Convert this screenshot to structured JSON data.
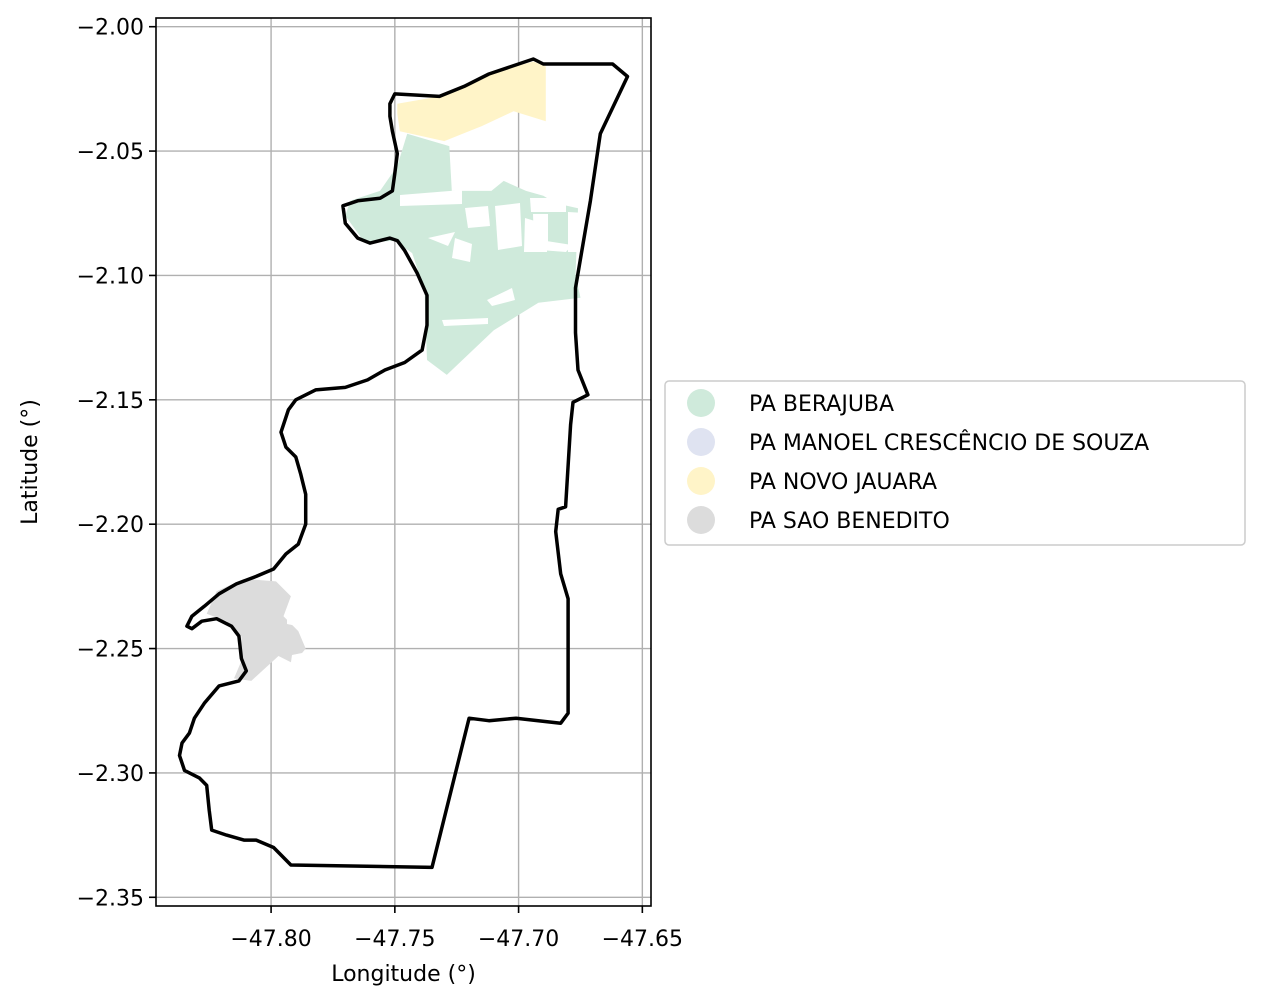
{
  "chart_data": {
    "type": "map",
    "xlabel": "Longitude (°)",
    "ylabel": "Latitude (°)",
    "xlim": [
      -47.8465,
      -47.6465
    ],
    "ylim": [
      -2.3535,
      -1.9965
    ],
    "grid": true,
    "x_ticks": [
      {
        "value": -47.8,
        "label": "−47.80"
      },
      {
        "value": -47.75,
        "label": "−47.75"
      },
      {
        "value": -47.7,
        "label": "−47.70"
      },
      {
        "value": -47.65,
        "label": "−47.65"
      }
    ],
    "y_ticks": [
      {
        "value": -2.0,
        "label": "−2.00"
      },
      {
        "value": -2.05,
        "label": "−2.05"
      },
      {
        "value": -2.1,
        "label": "−2.10"
      },
      {
        "value": -2.15,
        "label": "−2.15"
      },
      {
        "value": -2.2,
        "label": "−2.20"
      },
      {
        "value": -2.25,
        "label": "−2.25"
      },
      {
        "value": -2.3,
        "label": "−2.30"
      },
      {
        "value": -2.35,
        "label": "−2.35"
      }
    ],
    "legend_position": "right-center",
    "legend": [
      {
        "label": "PA BERAJUBA",
        "color": "#cfeadb"
      },
      {
        "label": "PA MANOEL CRESCÊNCIO DE SOUZA",
        "color": "#dfe3f1"
      },
      {
        "label": "PA NOVO JAUARA",
        "color": "#fff4c8"
      },
      {
        "label": "PA SAO BENEDITO",
        "color": "#dcdcdc"
      }
    ],
    "boundary": {
      "color": "#000000",
      "coords": [
        [
          -47.75,
          -2.027
        ],
        [
          -47.732,
          -2.028
        ],
        [
          -47.722,
          -2.024
        ],
        [
          -47.712,
          -2.019
        ],
        [
          -47.694,
          -2.013
        ],
        [
          -47.69,
          -2.015
        ],
        [
          -47.662,
          -2.015
        ],
        [
          -47.656,
          -2.02
        ],
        [
          -47.667,
          -2.043
        ],
        [
          -47.671,
          -2.07
        ],
        [
          -47.677,
          -2.105
        ],
        [
          -47.677,
          -2.123
        ],
        [
          -47.676,
          -2.138
        ],
        [
          -47.672,
          -2.148
        ],
        [
          -47.678,
          -2.151
        ],
        [
          -47.679,
          -2.16
        ],
        [
          -47.681,
          -2.193
        ],
        [
          -47.684,
          -2.194
        ],
        [
          -47.685,
          -2.203
        ],
        [
          -47.683,
          -2.22
        ],
        [
          -47.68,
          -2.23
        ],
        [
          -47.68,
          -2.276
        ],
        [
          -47.683,
          -2.28
        ],
        [
          -47.701,
          -2.278
        ],
        [
          -47.712,
          -2.279
        ],
        [
          -47.72,
          -2.278
        ],
        [
          -47.735,
          -2.338
        ],
        [
          -47.792,
          -2.337
        ],
        [
          -47.795,
          -2.334
        ],
        [
          -47.799,
          -2.33
        ],
        [
          -47.806,
          -2.327
        ],
        [
          -47.811,
          -2.327
        ],
        [
          -47.818,
          -2.325
        ],
        [
          -47.824,
          -2.323
        ],
        [
          -47.825,
          -2.315
        ],
        [
          -47.826,
          -2.305
        ],
        [
          -47.829,
          -2.302
        ],
        [
          -47.835,
          -2.299
        ],
        [
          -47.837,
          -2.293
        ],
        [
          -47.836,
          -2.288
        ],
        [
          -47.833,
          -2.284
        ],
        [
          -47.831,
          -2.278
        ],
        [
          -47.827,
          -2.272
        ],
        [
          -47.821,
          -2.265
        ],
        [
          -47.813,
          -2.263
        ],
        [
          -47.81,
          -2.259
        ],
        [
          -47.812,
          -2.254
        ],
        [
          -47.813,
          -2.245
        ],
        [
          -47.816,
          -2.241
        ],
        [
          -47.822,
          -2.238
        ],
        [
          -47.828,
          -2.239
        ],
        [
          -47.832,
          -2.242
        ],
        [
          -47.834,
          -2.241
        ],
        [
          -47.832,
          -2.237
        ],
        [
          -47.827,
          -2.233
        ],
        [
          -47.821,
          -2.228
        ],
        [
          -47.814,
          -2.224
        ],
        [
          -47.806,
          -2.221
        ],
        [
          -47.799,
          -2.218
        ],
        [
          -47.794,
          -2.212
        ],
        [
          -47.789,
          -2.208
        ],
        [
          -47.786,
          -2.2
        ],
        [
          -47.786,
          -2.188
        ],
        [
          -47.788,
          -2.18
        ],
        [
          -47.79,
          -2.173
        ],
        [
          -47.794,
          -2.169
        ],
        [
          -47.796,
          -2.163
        ],
        [
          -47.793,
          -2.154
        ],
        [
          -47.79,
          -2.15
        ],
        [
          -47.782,
          -2.146
        ],
        [
          -47.77,
          -2.145
        ],
        [
          -47.761,
          -2.142
        ],
        [
          -47.754,
          -2.138
        ],
        [
          -47.746,
          -2.135
        ],
        [
          -47.739,
          -2.13
        ],
        [
          -47.737,
          -2.12
        ],
        [
          -47.737,
          -2.108
        ],
        [
          -47.741,
          -2.099
        ],
        [
          -47.746,
          -2.09
        ],
        [
          -47.749,
          -2.086
        ],
        [
          -47.752,
          -2.085
        ],
        [
          -47.76,
          -2.087
        ],
        [
          -47.765,
          -2.085
        ],
        [
          -47.77,
          -2.079
        ],
        [
          -47.771,
          -2.072
        ],
        [
          -47.765,
          -2.07
        ],
        [
          -47.756,
          -2.069
        ],
        [
          -47.751,
          -2.066
        ],
        [
          -47.75,
          -2.059
        ],
        [
          -47.749,
          -2.051
        ],
        [
          -47.751,
          -2.042
        ],
        [
          -47.752,
          -2.036
        ],
        [
          -47.752,
          -2.031
        ],
        [
          -47.75,
          -2.027
        ]
      ]
    },
    "regions": [
      {
        "name": "PA NOVO JAUARA",
        "color": "#fff4c8",
        "coords": [
          [
            -47.749,
            -2.035
          ],
          [
            -47.748,
            -2.042
          ],
          [
            -47.73,
            -2.046
          ],
          [
            -47.715,
            -2.04
          ],
          [
            -47.702,
            -2.034
          ],
          [
            -47.689,
            -2.038
          ],
          [
            -47.689,
            -2.016
          ],
          [
            -47.694,
            -2.014
          ],
          [
            -47.712,
            -2.019
          ],
          [
            -47.722,
            -2.024
          ],
          [
            -47.732,
            -2.028
          ],
          [
            -47.749,
            -2.031
          ]
        ]
      },
      {
        "name": "PA BERAJUBA",
        "color": "#cfeadb",
        "coords": [
          [
            -47.745,
            -2.043
          ],
          [
            -47.728,
            -2.048
          ],
          [
            -47.727,
            -2.066
          ],
          [
            -47.711,
            -2.066
          ],
          [
            -47.706,
            -2.062
          ],
          [
            -47.697,
            -2.066
          ],
          [
            -47.69,
            -2.068
          ],
          [
            -47.685,
            -2.071
          ],
          [
            -47.676,
            -2.073
          ],
          [
            -47.677,
            -2.1
          ],
          [
            -47.675,
            -2.109
          ],
          [
            -47.692,
            -2.111
          ],
          [
            -47.71,
            -2.122
          ],
          [
            -47.729,
            -2.14
          ],
          [
            -47.737,
            -2.134
          ],
          [
            -47.738,
            -2.106
          ],
          [
            -47.743,
            -2.091
          ],
          [
            -47.75,
            -2.086
          ],
          [
            -47.762,
            -2.087
          ],
          [
            -47.77,
            -2.076
          ],
          [
            -47.768,
            -2.07
          ],
          [
            -47.756,
            -2.066
          ],
          [
            -47.749,
            -2.056
          ]
        ]
      },
      {
        "name": "PA SAO BENEDITO",
        "color": "#dcdcdc",
        "coords": [
          [
            -47.822,
            -2.227
          ],
          [
            -47.811,
            -2.222
          ],
          [
            -47.798,
            -2.223
          ],
          [
            -47.792,
            -2.229
          ],
          [
            -47.795,
            -2.237
          ],
          [
            -47.789,
            -2.243
          ],
          [
            -47.786,
            -2.25
          ],
          [
            -47.791,
            -2.256
          ],
          [
            -47.797,
            -2.253
          ],
          [
            -47.808,
            -2.263
          ],
          [
            -47.815,
            -2.262
          ],
          [
            -47.812,
            -2.255
          ],
          [
            -47.812,
            -2.245
          ],
          [
            -47.818,
            -2.239
          ],
          [
            -47.826,
            -2.236
          ]
        ]
      }
    ]
  }
}
